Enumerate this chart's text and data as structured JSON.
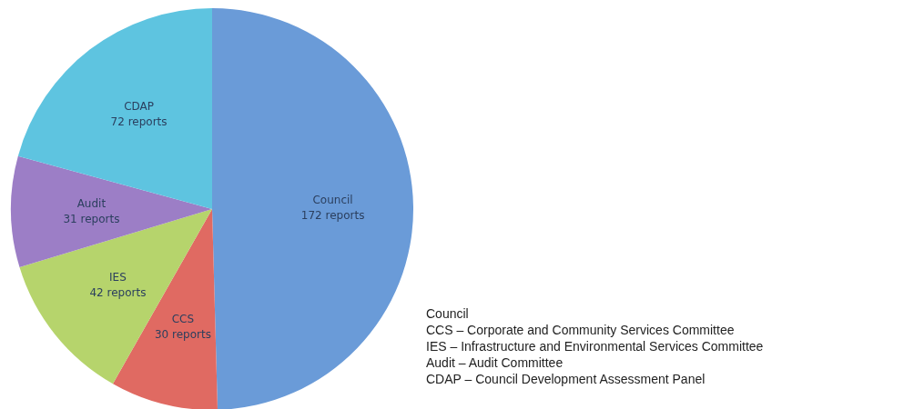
{
  "chart_data": {
    "type": "pie",
    "categories": [
      "Council",
      "CCS",
      "IES",
      "Audit",
      "CDAP"
    ],
    "values": [
      172,
      30,
      42,
      31,
      72
    ],
    "colors": [
      "#6a9bd8",
      "#e06a62",
      "#b6d46c",
      "#9c7ec6",
      "#5ec4e0"
    ],
    "value_labels": [
      "172 reports",
      "30 reports",
      "42 reports",
      "31 reports",
      "72 reports"
    ],
    "legend": false,
    "annotations": [
      "Council",
      "CCS – Corporate and Community Services Committee",
      "IES – Infrastructure and Environmental Services Committee",
      "Audit – Audit Committee",
      "CDAP – Council Development Assessment Panel"
    ]
  }
}
